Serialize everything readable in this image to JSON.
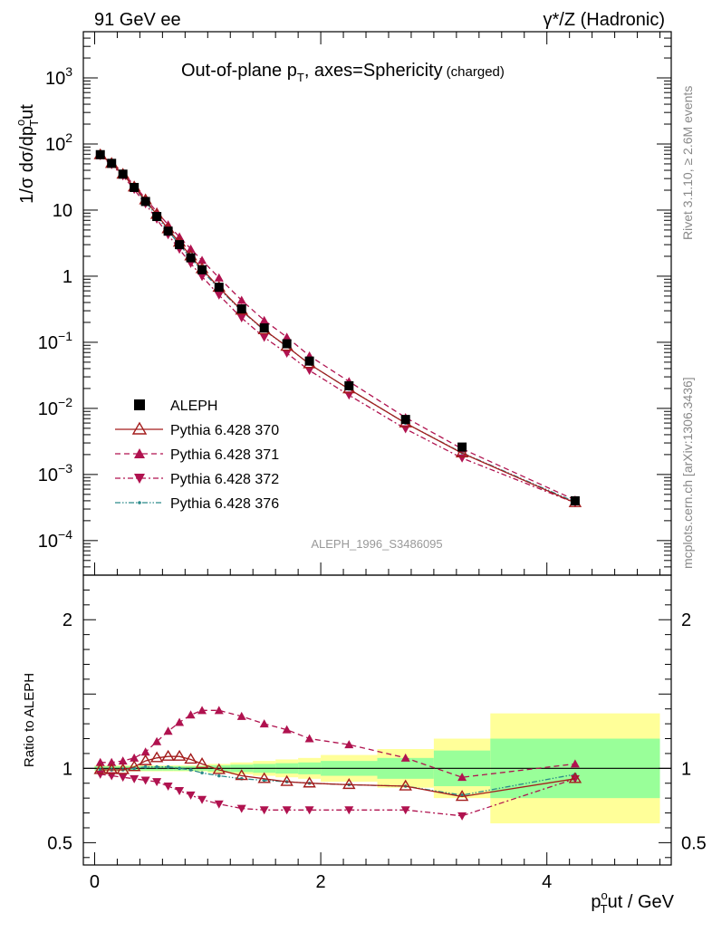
{
  "header": {
    "left": "91 GeV ee",
    "right": "γ*/Z (Hadronic)"
  },
  "chart_data": {
    "type": "scatter",
    "title": "Out-of-plane p_T, axes=Sphericity (charged)",
    "title_main": "Out-of-plane p",
    "title_sub": "T",
    "title_rest": ", axes=Sphericity",
    "title_small": "(charged)",
    "analysis_tag": "ALEPH_1996_S3486095",
    "side_label_top": "Rivet 3.1.10, ≥ 2.6M events",
    "side_label_bottom": "mcplots.cern.ch [arXiv:1306.3436]",
    "ylabel_main": "1/σ dσ/dp^o_T ut",
    "ylabel_ratio": "Ratio to ALEPH",
    "xlabel": "p^o_T ut / GeV",
    "xlabel_a": "p",
    "xlabel_b": "ut / GeV",
    "xlabel_sup": "o",
    "xlabel_sub": "T",
    "ylabel_a": "1/σ dσ/dp",
    "ylabel_b": "ut",
    "ylabel_sup": "o",
    "ylabel_sub": "T",
    "xlim": [
      -0.1,
      5.1
    ],
    "ylim_main": [
      3e-05,
      5000
    ],
    "ylog_main": true,
    "ylim_ratio": [
      0.35,
      2.3
    ],
    "legend_position": "lower-left",
    "main_ticks": [
      {
        "v": 0.0001,
        "base": "10",
        "exp": "−4"
      },
      {
        "v": 0.001,
        "base": "10",
        "exp": "−3"
      },
      {
        "v": 0.01,
        "base": "10",
        "exp": "−2"
      },
      {
        "v": 0.1,
        "base": "10",
        "exp": "−1"
      },
      {
        "v": 1,
        "base": "1",
        "exp": ""
      },
      {
        "v": 10,
        "base": "10",
        "exp": ""
      },
      {
        "v": 100,
        "base": "10",
        "exp": "2"
      },
      {
        "v": 1000,
        "base": "10",
        "exp": "3"
      }
    ],
    "x_ticks": [
      {
        "v": 0,
        "label": "0"
      },
      {
        "v": 2,
        "label": "2"
      },
      {
        "v": 4,
        "label": "4"
      }
    ],
    "ratio_ticks": [
      {
        "v": 0.5,
        "label": "0.5"
      },
      {
        "v": 1,
        "label": "1"
      },
      {
        "v": 2,
        "label": "2"
      }
    ],
    "x": [
      0.05,
      0.15,
      0.25,
      0.35,
      0.45,
      0.55,
      0.65,
      0.75,
      0.85,
      0.95,
      1.1,
      1.3,
      1.5,
      1.7,
      1.9,
      2.25,
      2.75,
      3.25,
      4.25
    ],
    "band_edges": [
      0,
      0.1,
      0.2,
      0.3,
      0.4,
      0.5,
      0.6,
      0.7,
      0.8,
      0.9,
      1.0,
      1.2,
      1.4,
      1.6,
      1.8,
      2.0,
      2.5,
      3.0,
      3.5,
      5.0
    ],
    "band_stat": [
      0.015,
      0.015,
      0.015,
      0.015,
      0.015,
      0.015,
      0.015,
      0.015,
      0.015,
      0.015,
      0.02,
      0.025,
      0.03,
      0.035,
      0.04,
      0.05,
      0.07,
      0.12,
      0.2
    ],
    "band_total": [
      0.02,
      0.02,
      0.02,
      0.02,
      0.02,
      0.02,
      0.02,
      0.02,
      0.02,
      0.02,
      0.03,
      0.04,
      0.05,
      0.06,
      0.07,
      0.09,
      0.13,
      0.2,
      0.37
    ],
    "series": [
      {
        "name": "ALEPH",
        "kind": "data",
        "color": "#000000",
        "style": "solid",
        "marker": "square",
        "values": [
          69,
          51,
          35,
          22,
          13.5,
          8,
          4.8,
          3.0,
          1.9,
          1.25,
          0.68,
          0.32,
          0.165,
          0.095,
          0.052,
          0.022,
          0.0068,
          0.0026,
          0.0004
        ]
      },
      {
        "name": "Pythia 6.428 370",
        "kind": "mc",
        "color": "#a31c1c",
        "style": "solid",
        "marker": "open-triangle-up",
        "ratio": [
          0.99,
          0.99,
          0.99,
          1.01,
          1.05,
          1.07,
          1.08,
          1.08,
          1.06,
          1.03,
          0.99,
          0.95,
          0.93,
          0.91,
          0.9,
          0.89,
          0.88,
          0.81,
          0.93
        ]
      },
      {
        "name": "Pythia 6.428 371",
        "kind": "mc",
        "color": "#b0124f",
        "style": "dashed",
        "marker": "filled-triangle-up",
        "ratio": [
          1.04,
          1.04,
          1.05,
          1.07,
          1.11,
          1.18,
          1.25,
          1.31,
          1.36,
          1.39,
          1.39,
          1.35,
          1.3,
          1.26,
          1.2,
          1.16,
          1.07,
          0.94,
          1.03
        ]
      },
      {
        "name": "Pythia 6.428 372",
        "kind": "mc",
        "color": "#b0124f",
        "style": "dashdot",
        "marker": "filled-triangle-down",
        "ratio": [
          0.96,
          0.95,
          0.94,
          0.93,
          0.92,
          0.91,
          0.88,
          0.85,
          0.82,
          0.79,
          0.76,
          0.73,
          0.72,
          0.72,
          0.72,
          0.72,
          0.72,
          0.68,
          0.93
        ]
      },
      {
        "name": "Pythia 6.428 376",
        "kind": "mc",
        "color": "#2a8a8a",
        "style": "dashdotdot",
        "marker": "dot",
        "ratio": [
          0.99,
          0.99,
          0.99,
          1.0,
          1.01,
          1.01,
          1.01,
          1.0,
          0.99,
          0.97,
          0.95,
          0.93,
          0.92,
          0.91,
          0.9,
          0.89,
          0.88,
          0.82,
          0.96
        ]
      }
    ]
  },
  "colors": {
    "band_stat": "#99ff99",
    "band_total": "#ffff99",
    "axis": "#000000",
    "tag": "#999999",
    "side_text": "#888888"
  }
}
